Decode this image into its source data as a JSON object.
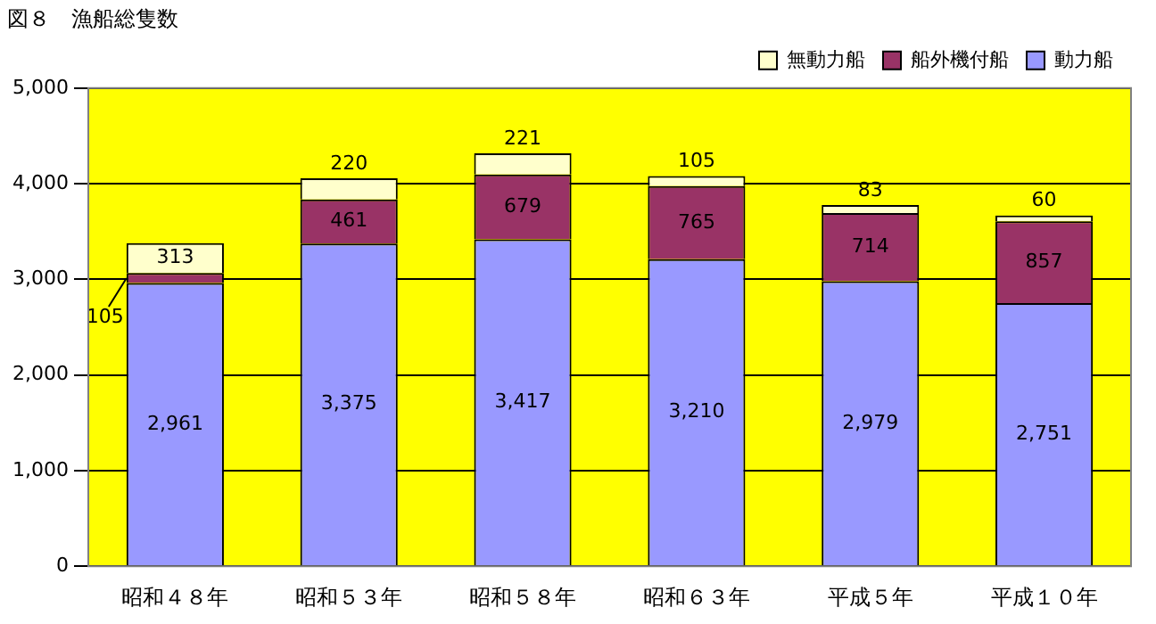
{
  "chart_data": {
    "type": "bar",
    "title": "図８　漁船総隻数",
    "stacked": true,
    "categories": [
      "昭和４８年",
      "昭和５３年",
      "昭和５８年",
      "昭和６３年",
      "平成５年",
      "平成１０年"
    ],
    "series": [
      {
        "name": "動力船",
        "color": "#9999ff",
        "values": [
          2961,
          3375,
          3417,
          3210,
          2979,
          2751
        ],
        "value_labels": [
          "2,961",
          "3,375",
          "3,417",
          "3,210",
          "2,979",
          "2,751"
        ]
      },
      {
        "name": "船外機付船",
        "color": "#993366",
        "values": [
          105,
          461,
          679,
          765,
          714,
          857
        ],
        "value_labels": [
          "105",
          "461",
          "679",
          "765",
          "714",
          "857"
        ]
      },
      {
        "name": "無動力船",
        "color": "#ffffcc",
        "values": [
          313,
          220,
          221,
          105,
          83,
          60
        ],
        "value_labels": [
          "313",
          "220",
          "221",
          "105",
          "83",
          "60"
        ]
      }
    ],
    "ylim": [
      0,
      5000
    ],
    "yticks": [
      {
        "value": 0,
        "label": "0"
      },
      {
        "value": 1000,
        "label": "1,000"
      },
      {
        "value": 2000,
        "label": "2,000"
      },
      {
        "value": 3000,
        "label": "3,000"
      },
      {
        "value": 4000,
        "label": "4,000"
      },
      {
        "value": 5000,
        "label": "5,000"
      }
    ],
    "grid": "y",
    "legend": "top right"
  }
}
